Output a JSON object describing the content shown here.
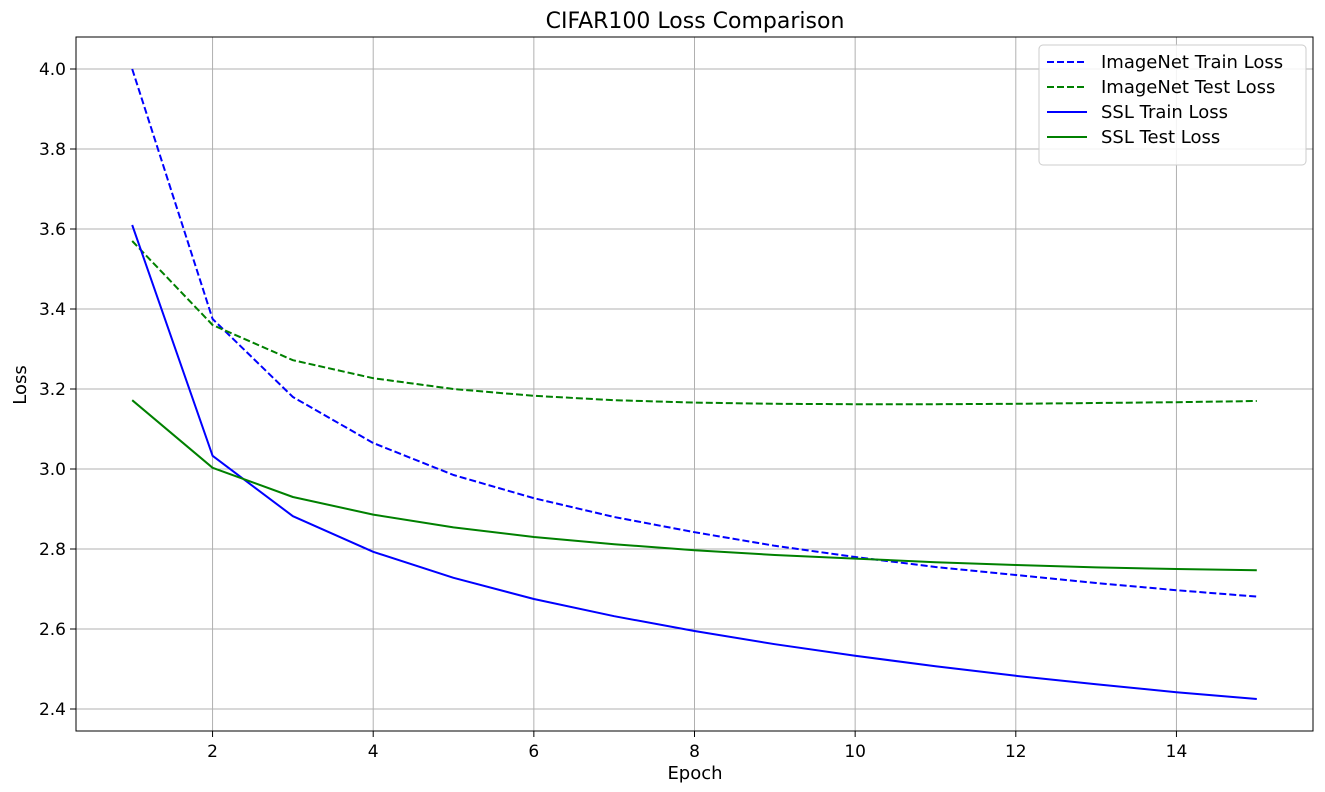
{
  "chart_data": {
    "type": "line",
    "title": "CIFAR100 Loss Comparison",
    "xlabel": "Epoch",
    "ylabel": "Loss",
    "xlim": [
      0.3,
      15.7
    ],
    "ylim": [
      2.345,
      4.08
    ],
    "xticks": [
      2,
      4,
      6,
      8,
      10,
      12,
      14
    ],
    "yticks": [
      2.4,
      2.6,
      2.8,
      3.0,
      3.2,
      3.4,
      3.6,
      3.8,
      4.0
    ],
    "xtick_labels": [
      "2",
      "4",
      "6",
      "8",
      "10",
      "12",
      "14"
    ],
    "ytick_labels": [
      "2.4",
      "2.6",
      "2.8",
      "3.0",
      "3.2",
      "3.4",
      "3.6",
      "3.8",
      "4.0"
    ],
    "grid": true,
    "legend_position": "top-right",
    "x": [
      1,
      2,
      3,
      4,
      5,
      6,
      7,
      8,
      9,
      10,
      11,
      12,
      13,
      14,
      15
    ],
    "series": [
      {
        "name": "ImageNet Train Loss",
        "color": "#0000ff",
        "style": "dashed",
        "values": [
          4.0,
          3.375,
          3.18,
          3.065,
          2.985,
          2.927,
          2.88,
          2.842,
          2.808,
          2.78,
          2.755,
          2.735,
          2.715,
          2.697,
          2.681
        ]
      },
      {
        "name": "ImageNet Test Loss",
        "color": "#008000",
        "style": "dashed",
        "values": [
          3.57,
          3.36,
          3.272,
          3.227,
          3.2,
          3.183,
          3.172,
          3.166,
          3.163,
          3.162,
          3.162,
          3.163,
          3.165,
          3.167,
          3.17
        ]
      },
      {
        "name": "SSL Train Loss",
        "color": "#0000ff",
        "style": "solid",
        "values": [
          3.61,
          3.033,
          2.882,
          2.793,
          2.728,
          2.675,
          2.632,
          2.595,
          2.562,
          2.533,
          2.507,
          2.483,
          2.462,
          2.442,
          2.425
        ]
      },
      {
        "name": "SSL Test Loss",
        "color": "#008000",
        "style": "solid",
        "values": [
          3.172,
          3.003,
          2.93,
          2.886,
          2.854,
          2.83,
          2.812,
          2.797,
          2.785,
          2.776,
          2.767,
          2.76,
          2.754,
          2.75,
          2.747
        ]
      }
    ]
  }
}
